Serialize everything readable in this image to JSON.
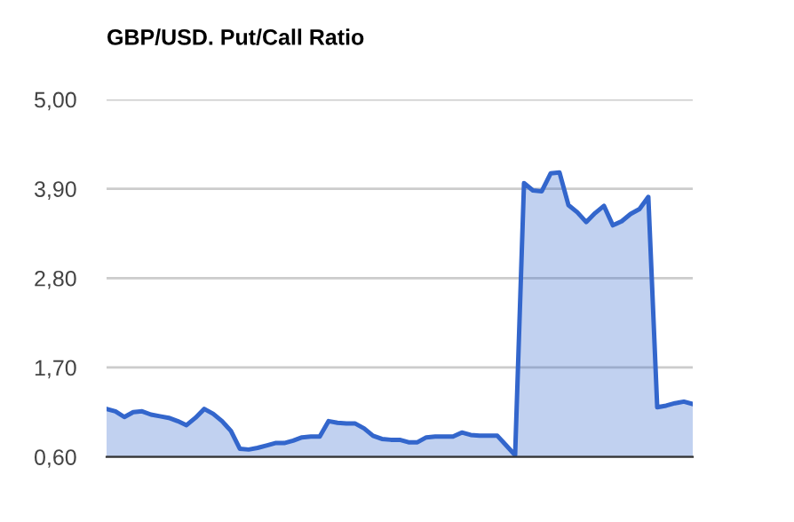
{
  "chart_data": {
    "type": "area",
    "title": "GBP/USD. Put/Call Ratio",
    "categories": [
      null,
      null,
      null,
      null,
      null,
      null,
      null,
      null,
      null,
      null,
      null,
      null,
      null,
      null,
      null,
      null,
      null,
      null,
      null,
      null,
      null,
      null,
      null,
      null,
      null,
      null,
      null,
      null,
      null,
      null,
      null,
      null,
      null,
      null,
      null,
      null,
      null,
      null,
      null,
      null,
      null,
      null,
      null,
      null,
      null,
      null,
      null,
      null,
      null,
      null,
      null,
      null,
      null,
      null,
      null,
      null,
      null,
      null,
      null,
      null,
      null,
      null,
      null,
      null,
      null,
      null,
      null
    ],
    "series": [
      {
        "color": "#3366cc",
        "values": [
          1.19,
          1.16,
          1.09,
          1.15,
          1.16,
          1.12,
          1.1,
          1.08,
          1.04,
          0.99,
          1.08,
          1.19,
          1.13,
          1.04,
          0.92,
          0.7,
          0.69,
          0.71,
          0.74,
          0.77,
          0.77,
          0.8,
          0.84,
          0.85,
          0.85,
          1.04,
          1.02,
          1.01,
          1.01,
          0.95,
          0.86,
          0.82,
          0.81,
          0.81,
          0.78,
          0.78,
          0.84,
          0.85,
          0.85,
          0.85,
          0.9,
          0.87,
          0.86,
          0.86,
          0.86,
          0.74,
          0.62,
          3.97,
          3.88,
          3.87,
          4.09,
          4.1,
          3.7,
          3.61,
          3.49,
          3.6,
          3.69,
          3.45,
          3.5,
          3.59,
          3.65,
          3.8,
          1.21,
          1.23,
          1.26,
          1.28,
          1.25
        ]
      }
    ],
    "ylim": [
      0.6,
      5.0
    ],
    "yticks": [
      {
        "value": 0.6,
        "label": "0,60"
      },
      {
        "value": 1.7,
        "label": "1,70"
      },
      {
        "value": 2.8,
        "label": "2,80"
      },
      {
        "value": 3.9,
        "label": "3,90"
      },
      {
        "value": 5.0,
        "label": "5,00"
      }
    ],
    "grid": "y",
    "tick_labels": "y"
  }
}
